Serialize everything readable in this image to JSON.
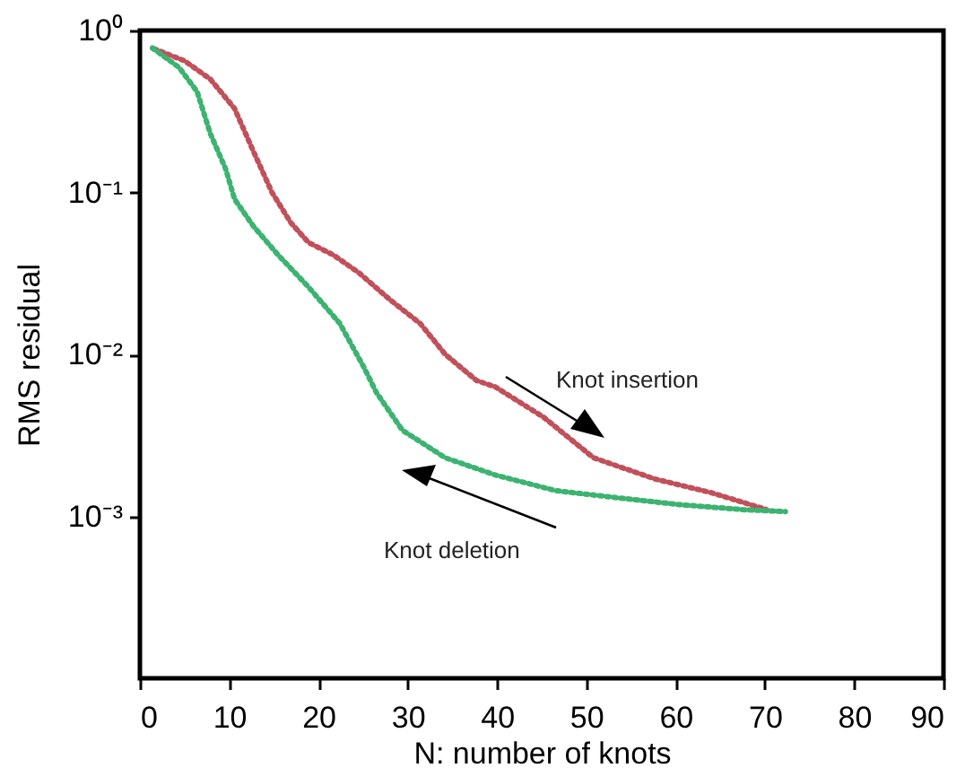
{
  "chart_data": {
    "type": "line",
    "xlabel": "N: number of knots",
    "ylabel": "RMS residual",
    "xlim": [
      0,
      90
    ],
    "xticks": [
      0,
      10,
      20,
      30,
      40,
      50,
      60,
      70,
      80,
      90
    ],
    "ylim": [
      0.0001,
      1
    ],
    "yticks": [
      {
        "value": 1,
        "label": "10⁰"
      },
      {
        "value": 0.1,
        "label": "10⁻¹"
      },
      {
        "value": 0.01,
        "label": "10⁻²"
      },
      {
        "value": 0.001,
        "label": "10⁻³"
      }
    ],
    "log": "y",
    "grid": false,
    "legend": false,
    "line_style": "dotted",
    "series": [
      {
        "color": "#c0505a",
        "x": [
          1.6,
          5,
          7.9,
          10.6,
          12.7,
          14.8,
          16.9,
          18.9,
          21.7,
          24.5,
          27.9,
          31.4,
          34.2,
          37.7,
          39.8,
          45.2,
          50.8,
          57.7,
          64,
          70.2
        ],
        "values": [
          0.77,
          0.65,
          0.5,
          0.33,
          0.18,
          0.1,
          0.065,
          0.049,
          0.041,
          0.032,
          0.022,
          0.0155,
          0.01,
          0.0069,
          0.0063,
          0.0041,
          0.0023,
          0.0017,
          0.0014,
          0.0011
        ]
      },
      {
        "color": "#3cb371",
        "x": [
          1.4,
          4.4,
          6.4,
          7.9,
          9.6,
          10.6,
          12.7,
          15.5,
          18.9,
          22.4,
          25.1,
          26.5,
          29.4,
          34.2,
          39.8,
          46.6,
          53.6,
          60.5,
          67.5,
          72.3
        ],
        "values": [
          0.78,
          0.59,
          0.42,
          0.23,
          0.14,
          0.091,
          0.062,
          0.041,
          0.026,
          0.0155,
          0.0083,
          0.0058,
          0.0034,
          0.0023,
          0.0018,
          0.00144,
          0.0013,
          0.00118,
          0.0011,
          0.00107
        ]
      }
    ],
    "annotations": [
      "Knot insertion",
      "Knot deletion"
    ]
  }
}
